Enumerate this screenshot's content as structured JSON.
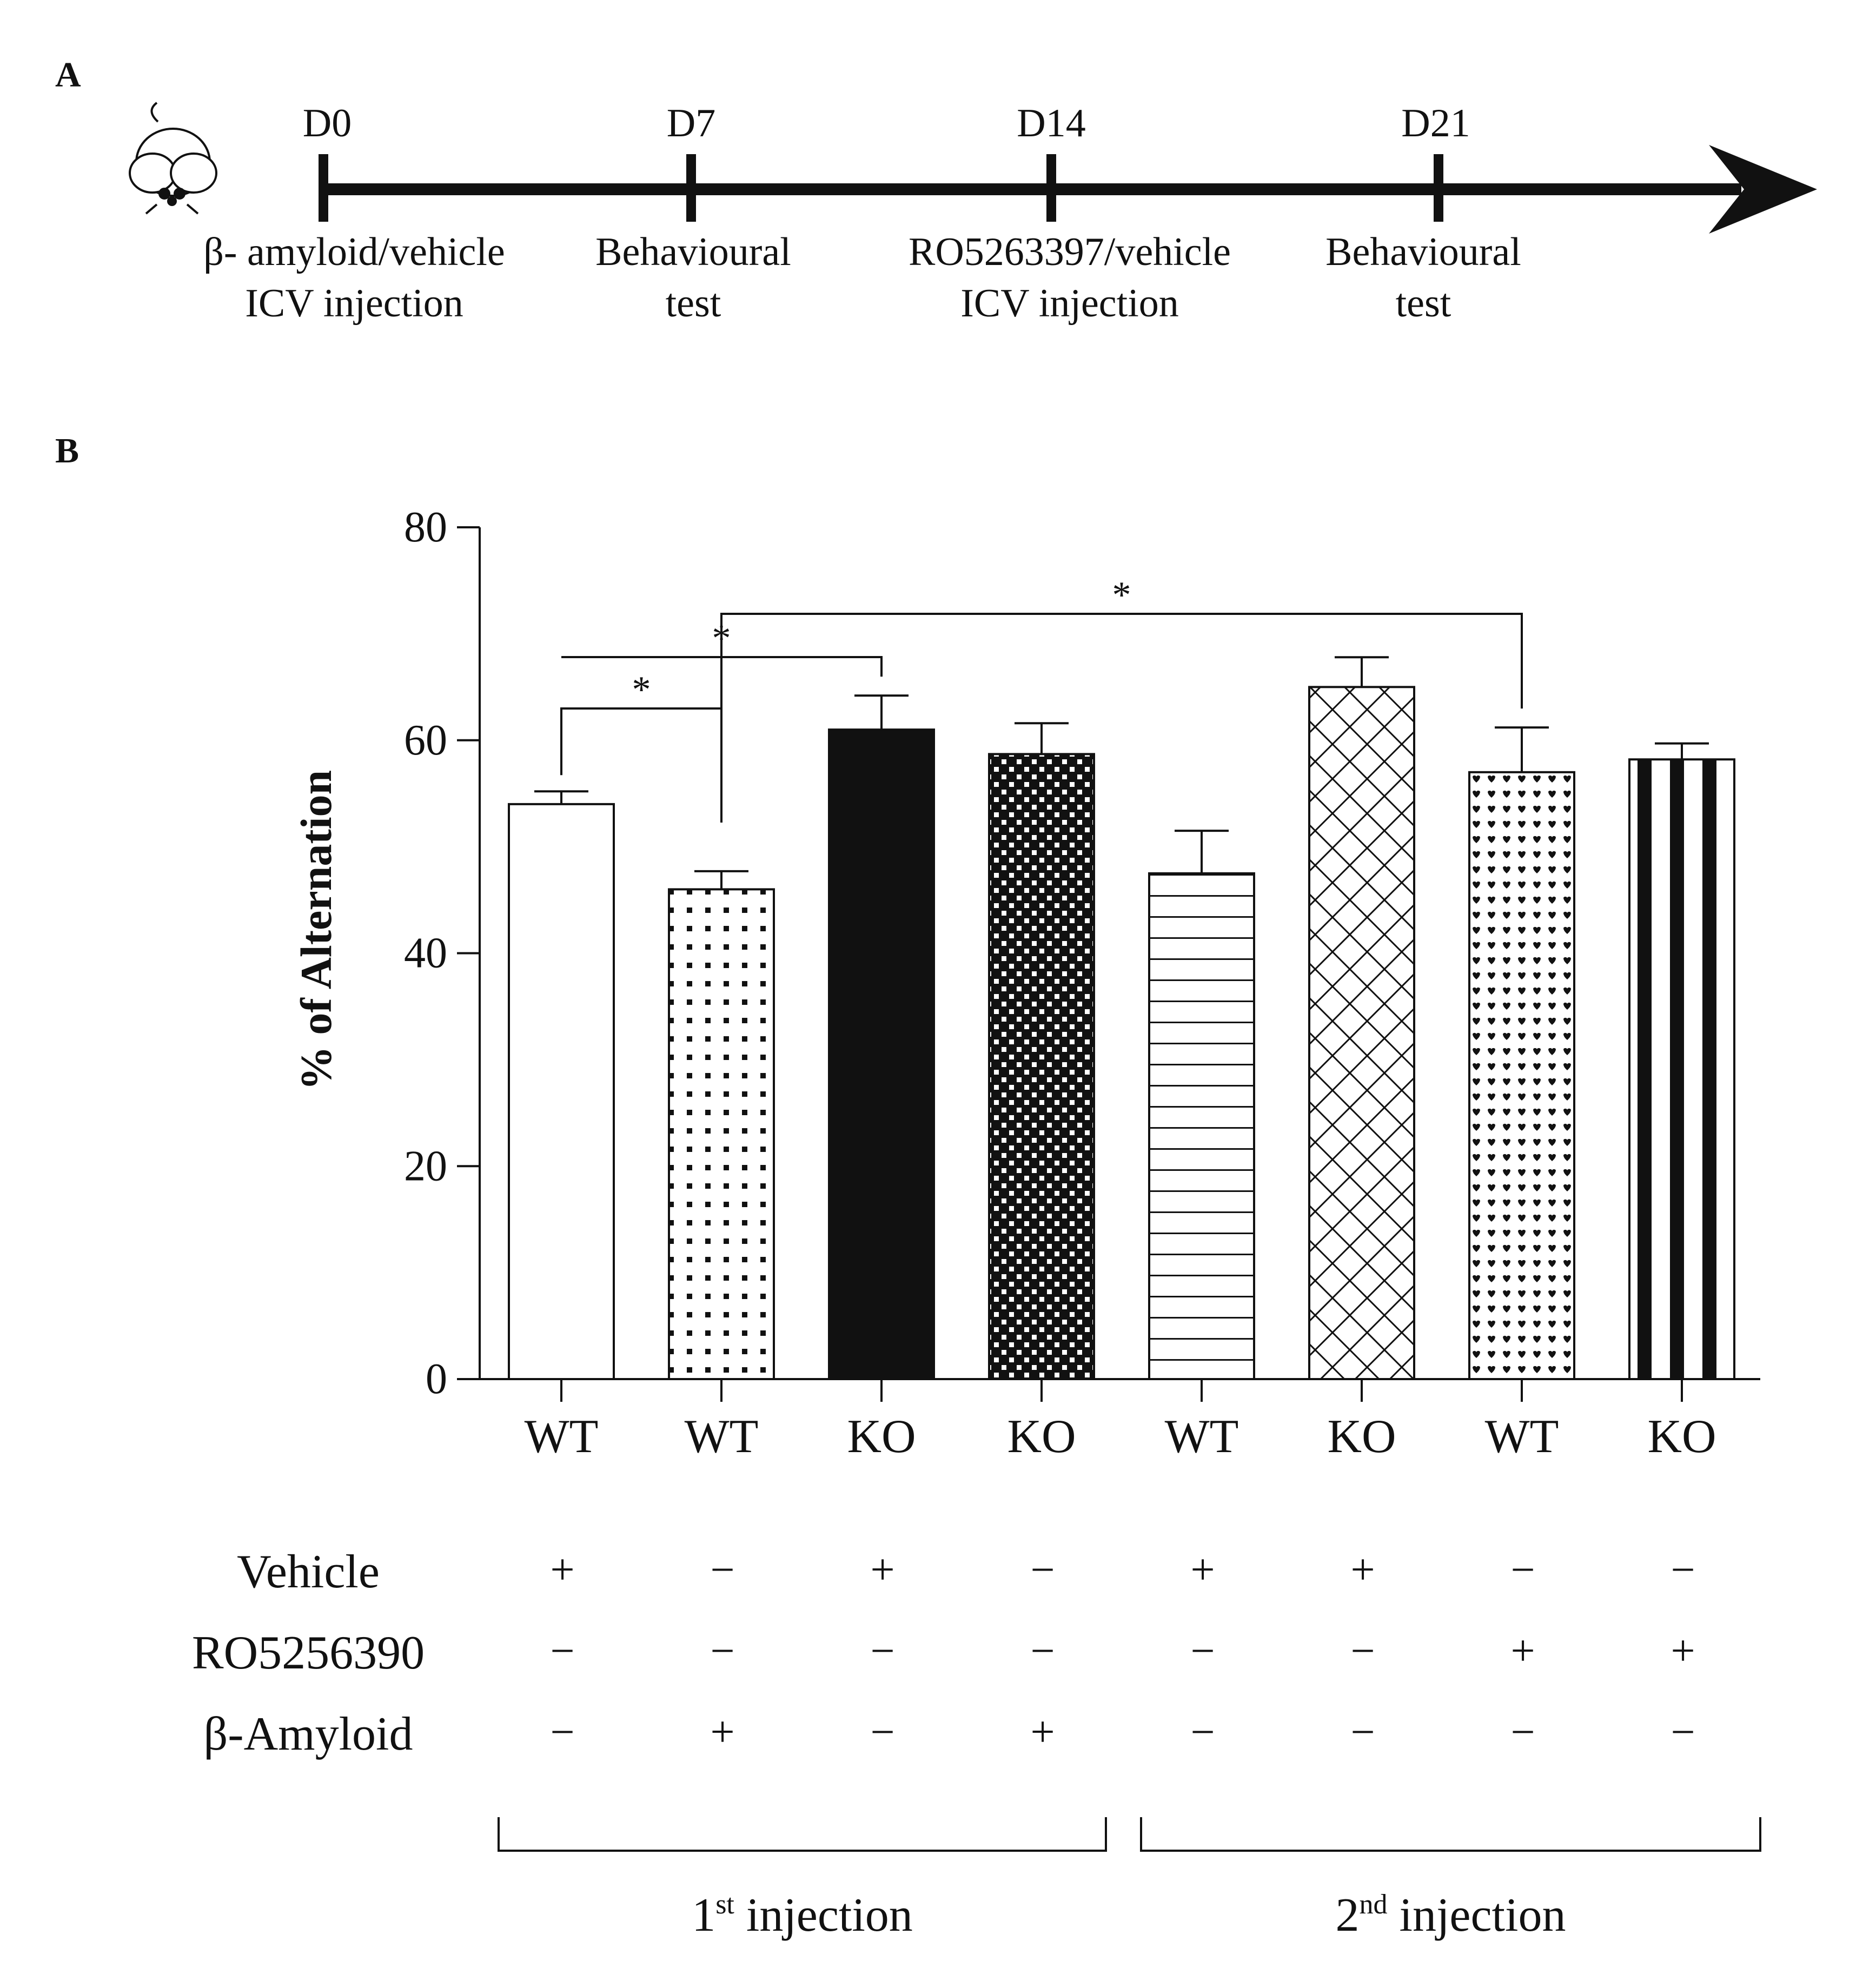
{
  "panels": {
    "a_label": "A",
    "b_label": "B"
  },
  "timeline": {
    "days": [
      "D0",
      "D7",
      "D14",
      "D21"
    ],
    "events": [
      [
        "β- amyloid/vehicle",
        "ICV injection"
      ],
      [
        "Behavioural",
        "test"
      ],
      [
        "RO5263397/vehicle",
        "ICV injection"
      ],
      [
        "Behavioural",
        "test"
      ]
    ]
  },
  "colors": {
    "ink": "#111111",
    "bar_fill": "#ffffff"
  },
  "chart_data": {
    "type": "bar",
    "title": "",
    "xlabel": "",
    "ylabel": "% of Alternation",
    "ylim": [
      0,
      80
    ],
    "yticks": [
      0,
      20,
      40,
      60,
      80
    ],
    "categories": [
      "WT",
      "WT",
      "KO",
      "KO",
      "WT",
      "KO",
      "WT",
      "KO"
    ],
    "values": [
      54,
      46,
      61,
      58.7,
      47.5,
      65,
      57,
      58.2
    ],
    "errors": [
      1.2,
      1.7,
      3.2,
      2.9,
      4,
      2.8,
      4.2,
      1.5
    ],
    "patterns": [
      "none",
      "small-dots",
      "solid",
      "checker",
      "horizontal-lines",
      "crosshatch",
      "heart-dots",
      "vertical-stripes"
    ],
    "significance": [
      {
        "from": 0,
        "to": 1,
        "label": "*"
      },
      {
        "from": 0,
        "to": 2,
        "label": "*"
      },
      {
        "from": 1,
        "to": 6,
        "label": "*"
      }
    ],
    "treatments": {
      "rows": [
        {
          "label": "Vehicle",
          "values": [
            "+",
            "−",
            "+",
            "−",
            "+",
            "+",
            "−",
            "−"
          ]
        },
        {
          "label": "RO5256390",
          "values": [
            "−",
            "−",
            "−",
            "−",
            "−",
            "−",
            "+",
            "+"
          ]
        },
        {
          "label": "β-Amyloid",
          "values": [
            "−",
            "+",
            "−",
            "+",
            "−",
            "−",
            "−",
            "−"
          ]
        }
      ]
    },
    "groups": [
      {
        "label_main": "1",
        "label_sup": "st",
        "label_rest": " injection",
        "from": 0,
        "to": 3
      },
      {
        "label_main": "2",
        "label_sup": "nd",
        "label_rest": " injection",
        "from": 4,
        "to": 7
      }
    ]
  }
}
